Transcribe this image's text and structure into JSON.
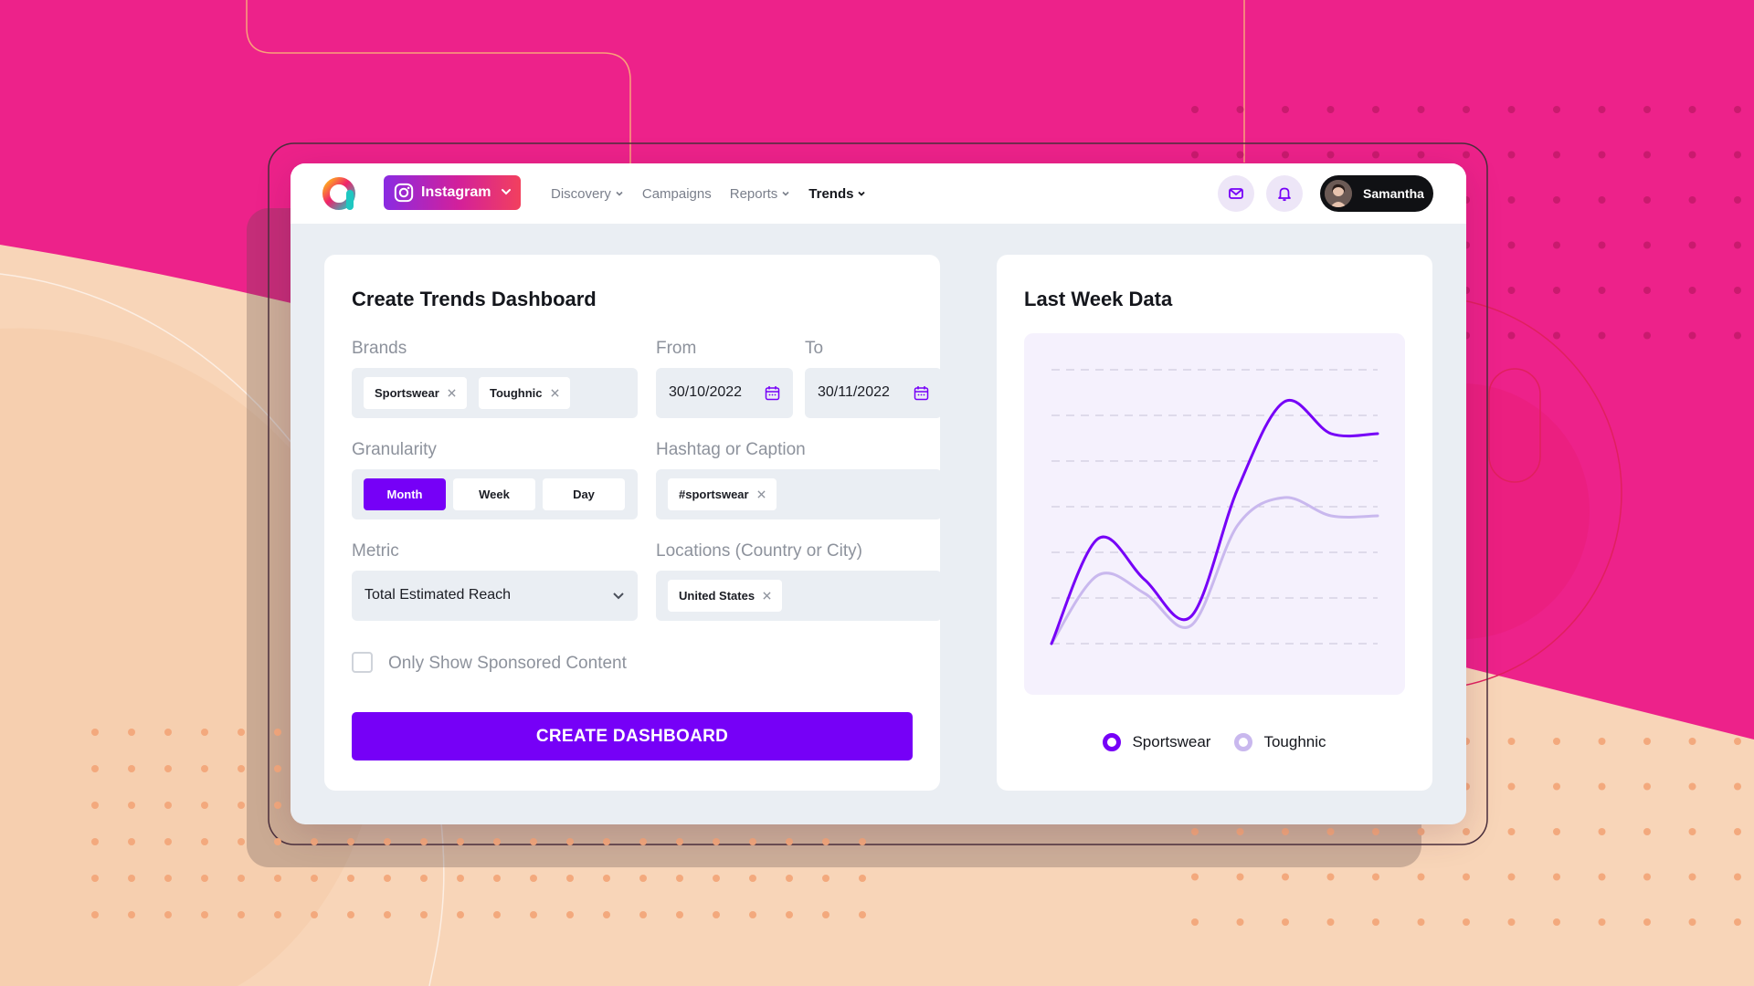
{
  "nav": {
    "platform": "Instagram",
    "items": [
      {
        "label": "Discovery",
        "dropdown": true,
        "active": false
      },
      {
        "label": "Campaigns",
        "dropdown": false,
        "active": false
      },
      {
        "label": "Reports",
        "dropdown": true,
        "active": false
      },
      {
        "label": "Trends",
        "dropdown": true,
        "active": true
      }
    ],
    "icons": {
      "messages": "mail-icon",
      "notifications": "bell-icon"
    },
    "user": "Samantha"
  },
  "form": {
    "title": "Create Trends Dashboard",
    "brands": {
      "label": "Brands",
      "chips": [
        "Sportswear",
        "Toughnic"
      ]
    },
    "from": {
      "label": "From",
      "value": "30/10/2022"
    },
    "to": {
      "label": "To",
      "value": "30/11/2022"
    },
    "granularity": {
      "label": "Granularity",
      "options": [
        "Month",
        "Week",
        "Day"
      ],
      "selected": "Month"
    },
    "hashtag": {
      "label": "Hashtag or Caption",
      "chips": [
        "#sportswear"
      ]
    },
    "metric": {
      "label": "Metric",
      "value": "Total Estimated Reach"
    },
    "locations": {
      "label": "Locations (Country or City)",
      "chips": [
        "United States"
      ]
    },
    "sponsored": {
      "label": "Only Show Sponsored Content",
      "checked": false
    },
    "submit": "CREATE DASHBOARD"
  },
  "chart": {
    "title": "Last Week Data",
    "legend": [
      {
        "name": "Sportswear",
        "color": "#7600F7"
      },
      {
        "name": "Toughnic",
        "color": "#C9B8EE"
      }
    ]
  },
  "chart_data": {
    "type": "line",
    "x": [
      0,
      1,
      2,
      3,
      4,
      5,
      6,
      7
    ],
    "series": [
      {
        "name": "Sportswear",
        "values": [
          0,
          2.3,
          1.4,
          0.6,
          3.4,
          5.3,
          4.6,
          4.6
        ]
      },
      {
        "name": "Toughnic",
        "values": [
          0,
          1.5,
          1.1,
          0.4,
          2.6,
          3.2,
          2.8,
          2.8
        ]
      }
    ],
    "ylim": [
      0,
      6
    ],
    "grid": true,
    "legend_position": "bottom"
  },
  "colors": {
    "accent": "#7600F7",
    "background": "#ED228A",
    "peach": "#F8D5B8"
  }
}
